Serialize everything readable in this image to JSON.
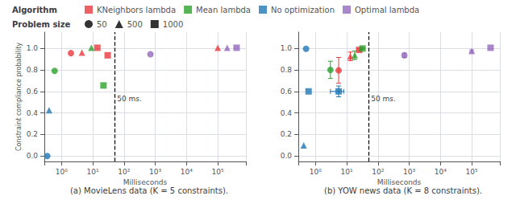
{
  "chart_data": {
    "type": "scatter",
    "log": "x",
    "grid": true,
    "xlabel": "Milliseconds",
    "xlim": [
      0.28183829312644537,
      794328.2347242815
    ],
    "xticks": [
      {
        "value": 1,
        "label": "10⁰"
      },
      {
        "value": 10,
        "label": "10¹"
      },
      {
        "value": 100,
        "label": "10²"
      },
      {
        "value": 1000,
        "label": "10³"
      },
      {
        "value": 10000,
        "label": "10⁴"
      },
      {
        "value": 100000,
        "label": "10⁵"
      }
    ],
    "ylim": [
      -0.05,
      1.15
    ],
    "yticks": [
      {
        "value": 0,
        "label": "0.0"
      },
      0.2,
      0.4,
      0.6,
      0.8,
      {
        "value": 1,
        "label": "1.0"
      }
    ],
    "vline": {
      "x": 50,
      "line_style": "dashed",
      "color": "#000000"
    },
    "annotations": [
      {
        "text": "50 ms.",
        "x": 60,
        "y": 0.53
      }
    ],
    "legends": [
      {
        "title": "Algorithm",
        "marker": "square",
        "entries": [
          {
            "name": "KNeighbors lambda",
            "color": "#e8383d"
          },
          {
            "name": "Mean lambda",
            "color": "#2ca02c"
          },
          {
            "name": "No optimization",
            "color": "#1f77b4"
          },
          {
            "name": "Optimal lambda",
            "color": "#9467bd"
          }
        ]
      },
      {
        "title": "Problem size",
        "color": "#000000",
        "entries": [
          {
            "name": "50",
            "marker": "circle"
          },
          {
            "name": "500",
            "marker": "triangle"
          },
          {
            "name": "1000",
            "marker": "square"
          }
        ]
      }
    ],
    "panels": [
      {
        "title": "(a) MovieLens data (K = 5 constraints).",
        "ylabel": "Constraint compliance probability",
        "series": [
          {
            "name": "KNeighbors lambda",
            "color": "#e8383d",
            "x": [
              2.0,
              4.5,
              14.0,
              30.0,
              100000.0
            ],
            "values": [
              0.955,
              0.96,
              1.005,
              0.935,
              1.005
            ],
            "problem_size": [
              50,
              500,
              1000,
              1000,
              500
            ]
          },
          {
            "name": "Mean lambda",
            "color": "#2ca02c",
            "x": [
              0.6,
              9.0,
              22.0
            ],
            "values": [
              0.79,
              1.005,
              0.655
            ],
            "problem_size": [
              50,
              500,
              1000
            ]
          },
          {
            "name": "No optimization",
            "color": "#1f77b4",
            "x": [
              0.35,
              0.4
            ],
            "values": [
              0.0,
              0.425
            ],
            "problem_size": [
              50,
              500
            ]
          },
          {
            "name": "Optimal lambda",
            "color": "#9467bd",
            "x": [
              700.0,
              200000.0,
              400000.0
            ],
            "values": [
              0.945,
              1.005,
              1.005
            ],
            "problem_size": [
              50,
              500,
              1000
            ]
          }
        ]
      },
      {
        "title": "(b) YOW news data (K = 8 constraints).",
        "series": [
          {
            "name": "KNeighbors lambda",
            "color": "#e8383d",
            "x": [
              5.5,
              13.0,
              25.0
            ],
            "values": [
              0.795,
              0.925,
              0.985
            ],
            "problem_size": [
              50,
              500,
              1000
            ],
            "yerr": [
              [
                0.12,
                0.12
              ],
              [
                0.04,
                0.04
              ],
              [
                0.01,
                0.01
              ]
            ]
          },
          {
            "name": "Mean lambda",
            "color": "#2ca02c",
            "x": [
              3.0,
              18.0,
              32.0
            ],
            "values": [
              0.8,
              0.935,
              0.998
            ],
            "problem_size": [
              50,
              500,
              1000
            ],
            "yerr": [
              [
                0.08,
                0.08
              ],
              [
                0.04,
                0.04
              ],
              [
                0.005,
                0.005
              ]
            ]
          },
          {
            "name": "No optimization",
            "color": "#1f77b4",
            "x": [
              0.42,
              0.5,
              0.6,
              5.5
            ],
            "values": [
              0.1,
              0.995,
              0.6,
              0.6
            ],
            "problem_size": [
              500,
              50,
              1000,
              1000
            ],
            "xerr": [
              null,
              null,
              null,
              [
                2.5,
                2.5
              ]
            ],
            "yerr": [
              null,
              null,
              null,
              [
                0.05,
                0.05
              ]
            ]
          },
          {
            "name": "Optimal lambda",
            "color": "#9467bd",
            "x": [
              700.0,
              100000.0,
              400000.0
            ],
            "values": [
              0.935,
              0.975,
              1.005
            ],
            "problem_size": [
              50,
              500,
              1000
            ],
            "yerr": [
              [
                0.02,
                0.02
              ],
              [
                0.01,
                0.01
              ],
              null
            ]
          }
        ]
      }
    ]
  }
}
